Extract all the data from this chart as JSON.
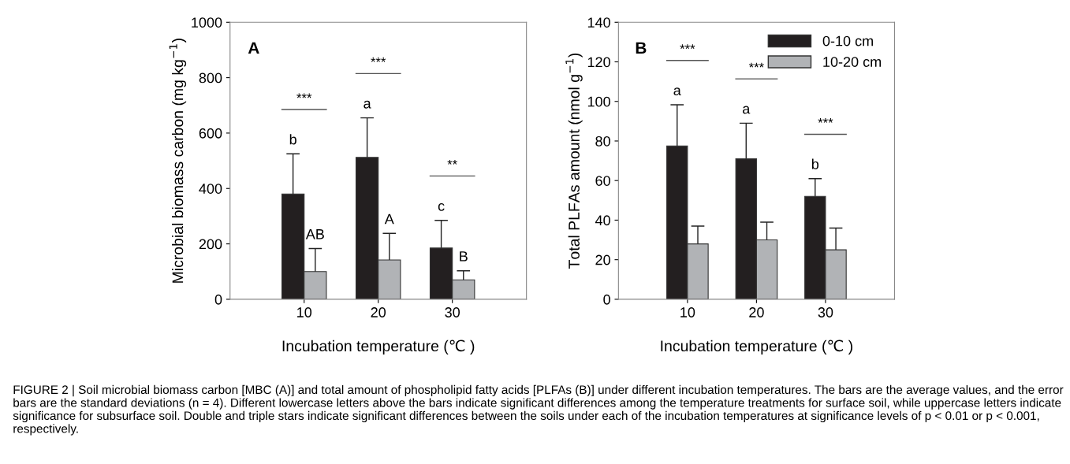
{
  "chart_data": [
    {
      "type": "bar",
      "title": "A",
      "categories": [
        "10",
        "20",
        "30"
      ],
      "xlabel": "Incubation temperature (℃ )",
      "ylabel": "Microbial biomass carbon (mg kg$^{−1}$)",
      "ylim": [
        0,
        1000
      ],
      "yticks": [
        0,
        200,
        400,
        600,
        800,
        1000
      ],
      "legend": false,
      "series": [
        {
          "color": "#231f20",
          "values": [
            380,
            512,
            185
          ],
          "errors": [
            145,
            143,
            100
          ]
        },
        {
          "color": "#b1b3b6",
          "values": [
            100,
            142,
            70
          ],
          "errors": [
            83,
            96,
            33
          ]
        }
      ],
      "annotations": [
        "***",
        "***",
        "**",
        "b",
        "a",
        "c",
        "AB",
        "A",
        "B"
      ]
    },
    {
      "type": "bar",
      "title": "B",
      "categories": [
        "10",
        "20",
        "30"
      ],
      "xlabel": "Incubation temperature (℃ )",
      "ylabel": "Total PLFAs amount (nmol g$^{−1}$)",
      "ylim": [
        0,
        140
      ],
      "yticks": [
        0,
        20,
        40,
        60,
        80,
        100,
        120,
        140
      ],
      "legend": "top right",
      "series": [
        {
          "name": "0-10 cm",
          "color": "#231f20",
          "values": [
            77.5,
            71,
            52
          ],
          "errors": [
            20.8,
            18,
            9
          ]
        },
        {
          "name": "10-20 cm",
          "color": "#b1b3b6",
          "values": [
            28,
            30,
            25
          ],
          "errors": [
            9,
            9,
            11
          ]
        }
      ],
      "annotations": [
        "***",
        "***",
        "***",
        "a",
        "a",
        "b"
      ]
    },
    {
      "type": "other",
      "annotations": [
        "FIGURE 2 | Soil microbial biomass carbon [MBC (A)] and total amount of phospholipid fatty acids [PLFAs (B)] under different incubation temperatures. The bars are the average values, and the error bars are the standard deviations (n = 4). Different lowercase letters above the bars indicate significant differences among the temperature treatments for surface soil, while uppercase letters indicate significance for subsurface soil. Double and triple stars indicate significant differences between the soils under each of the incubation temperatures at significance levels of p < 0.01 or p < 0.001, respectively."
      ]
    }
  ]
}
